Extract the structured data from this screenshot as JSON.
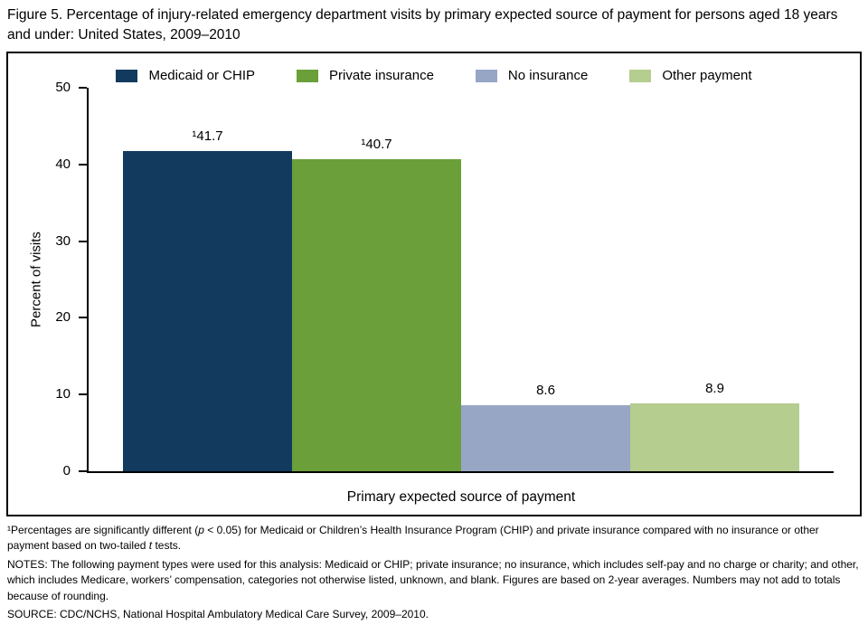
{
  "chart_data": {
    "type": "bar",
    "title": "Figure 5. Percentage of injury-related emergency department visits by primary expected source of payment for persons aged 18 years and under: United States, 2009–2010",
    "categories": [
      "Medicaid or CHIP",
      "Private insurance",
      "No insurance",
      "Other payment"
    ],
    "values": [
      41.7,
      40.7,
      8.6,
      8.9
    ],
    "value_labels": [
      "¹41.7",
      "¹40.7",
      "8.6",
      "8.9"
    ],
    "colors": [
      "#123a5e",
      "#6a9f3a",
      "#98a6c6",
      "#b5cd8e"
    ],
    "xlabel": "Primary expected source of payment",
    "ylabel": "Percent of visits",
    "ylim": [
      0,
      50
    ],
    "yticks": [
      0,
      10,
      20,
      30,
      40,
      50
    ],
    "legend_position": "top",
    "grid": false
  },
  "footnotes": [
    {
      "segments": [
        {
          "t": "¹Percentages are significantly different ("
        },
        {
          "t": "p",
          "i": true
        },
        {
          "t": " < 0.05) for Medicaid or Children’s Health Insurance Program (CHIP) and private insurance compared with no insurance or other payment based on two-tailed "
        },
        {
          "t": "t",
          "i": true
        },
        {
          "t": " tests."
        }
      ]
    },
    {
      "segments": [
        {
          "t": "NOTES: The following payment types were used for this analysis: Medicaid or CHIP; private insurance; no insurance, which includes self-pay and no charge or charity; and other, which includes Medicare, workers’ compensation, categories not otherwise listed, unknown, and blank. Figures are based on 2-year averages. Numbers may not add to totals because of rounding."
        }
      ]
    },
    {
      "segments": [
        {
          "t": "SOURCE: CDC/NCHS, National Hospital Ambulatory Medical Care Survey, 2009–2010."
        }
      ]
    }
  ]
}
